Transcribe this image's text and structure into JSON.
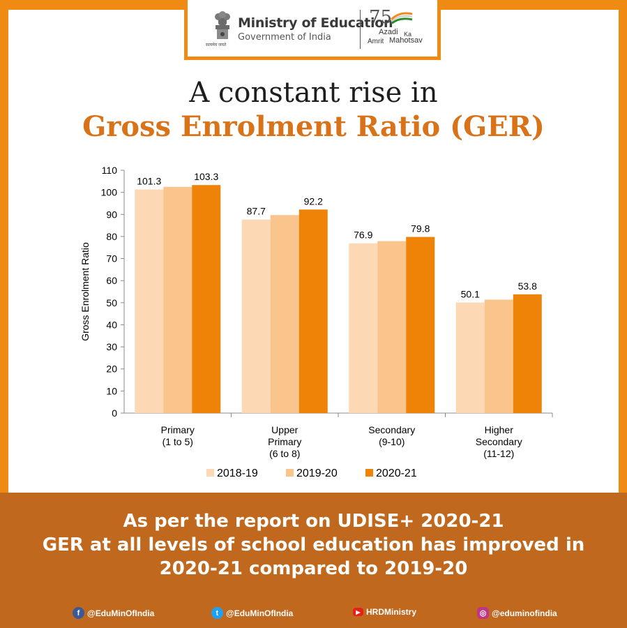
{
  "header": {
    "ministry_title": "Ministry of Education",
    "ministry_subtitle": "Government of India",
    "emblem_caption": "सत्यमेव जयते",
    "azadi_number": "75",
    "azadi_line1": "Azadi",
    "azadi_ka": "Ka",
    "azadi_line2": "Amrit",
    "azadi_line3": "Mahotsav"
  },
  "title": {
    "line1": "A constant rise in",
    "line2": "Gross Enrolment Ratio (GER)"
  },
  "chart_data": {
    "type": "bar",
    "ylabel": "Gross Enrolment Ratio",
    "ylim": [
      0,
      110
    ],
    "yticks": [
      0,
      10,
      20,
      30,
      40,
      50,
      60,
      70,
      80,
      90,
      100,
      110
    ],
    "categories": [
      [
        "Primary",
        "(1 to 5)"
      ],
      [
        "Upper",
        "Primary",
        "(6 to 8)"
      ],
      [
        "Secondary",
        "(9-10)"
      ],
      [
        "Higher",
        "Secondary",
        "(11-12)"
      ]
    ],
    "series": [
      {
        "name": "2018-19",
        "color": "#fcd9b4",
        "values": [
          101.3,
          87.7,
          76.9,
          50.1
        ],
        "labels": [
          "101.3",
          "87.7",
          "76.9",
          "50.1"
        ]
      },
      {
        "name": "2019-20",
        "color": "#f9c58c",
        "values": [
          102.5,
          89.7,
          77.9,
          51.4
        ],
        "labels": [
          "",
          "",
          "",
          ""
        ]
      },
      {
        "name": "2020-21",
        "color": "#ee8307",
        "values": [
          103.3,
          92.2,
          79.8,
          53.8
        ],
        "labels": [
          "103.3",
          "92.2",
          "79.8",
          "53.8"
        ]
      }
    ],
    "legend_position": "bottom",
    "grid": false
  },
  "note": {
    "line1": "As per the report on UDISE+ 2020-21",
    "line2": "GER at all levels of school education has improved in",
    "line3": "2020-21 compared to 2019-20"
  },
  "social": {
    "facebook": "@EduMinOfIndia",
    "twitter": "@EduMinOfIndia",
    "youtube": "HRDMinistry",
    "instagram": "@eduminofindia"
  },
  "icons": {
    "facebook": "facebook-icon",
    "twitter": "twitter-icon",
    "youtube": "youtube-icon",
    "instagram": "instagram-icon"
  },
  "colors": {
    "frame": "#ef8b12",
    "band": "#c0691e",
    "title_accent": "#d9731a"
  }
}
